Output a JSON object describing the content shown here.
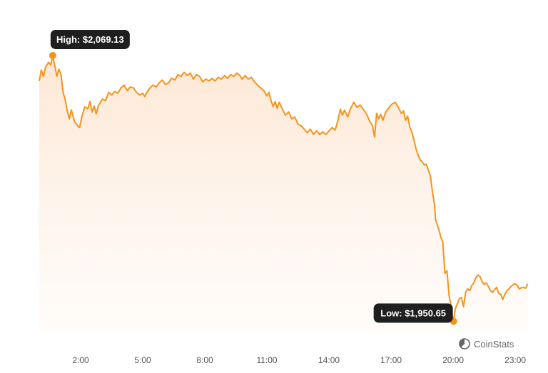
{
  "chart_data": {
    "type": "area",
    "x_unit": "hour",
    "xlim": [
      0,
      24.1
    ],
    "ylim": [
      1946,
      2078
    ],
    "x_ticks": [
      {
        "x": 2,
        "label": "2:00"
      },
      {
        "x": 5,
        "label": "5:00"
      },
      {
        "x": 8,
        "label": "8:00"
      },
      {
        "x": 11,
        "label": "11:00"
      },
      {
        "x": 14,
        "label": "14:00"
      },
      {
        "x": 17,
        "label": "17:00"
      },
      {
        "x": 20,
        "label": "20:00"
      },
      {
        "x": 23,
        "label": "23:00"
      }
    ],
    "colors": {
      "line": "#f7931a",
      "fill_top": "#fde6d2",
      "fill_bottom": "#fffaf6",
      "callout": "#1f1f1f"
    },
    "high": {
      "x": 0.65,
      "y": 2069.13,
      "label": "High: $2,069.13"
    },
    "low": {
      "x": 20.02,
      "y": 1950.65,
      "label": "Low: $1,950.65"
    },
    "points": [
      [
        0,
        2057.8
      ],
      [
        0.1,
        2062.7
      ],
      [
        0.2,
        2059.8
      ],
      [
        0.3,
        2063.8
      ],
      [
        0.45,
        2066.1
      ],
      [
        0.55,
        2064.9
      ],
      [
        0.65,
        2069.13
      ],
      [
        0.75,
        2064.5
      ],
      [
        0.85,
        2059.9
      ],
      [
        0.95,
        2063.0
      ],
      [
        1.05,
        2060.7
      ],
      [
        1.15,
        2052.7
      ],
      [
        1.25,
        2049.5
      ],
      [
        1.35,
        2044.6
      ],
      [
        1.45,
        2040.9
      ],
      [
        1.55,
        2044.9
      ],
      [
        1.7,
        2039.8
      ],
      [
        1.85,
        2037.8
      ],
      [
        1.95,
        2037.0
      ],
      [
        2.05,
        2041.6
      ],
      [
        2.2,
        2046.2
      ],
      [
        2.35,
        2045.4
      ],
      [
        2.45,
        2048.6
      ],
      [
        2.55,
        2043.9
      ],
      [
        2.65,
        2046.6
      ],
      [
        2.75,
        2043.1
      ],
      [
        2.85,
        2046.6
      ],
      [
        2.95,
        2048.2
      ],
      [
        3.05,
        2049.7
      ],
      [
        3.2,
        2049.0
      ],
      [
        3.35,
        2052.7
      ],
      [
        3.5,
        2051.5
      ],
      [
        3.65,
        2053.1
      ],
      [
        3.8,
        2052.3
      ],
      [
        3.95,
        2054.7
      ],
      [
        4.1,
        2055.9
      ],
      [
        4.25,
        2053.5
      ],
      [
        4.4,
        2055.1
      ],
      [
        4.55,
        2054.7
      ],
      [
        4.7,
        2052.7
      ],
      [
        4.85,
        2051.5
      ],
      [
        5.0,
        2052.3
      ],
      [
        5.1,
        2050.8
      ],
      [
        5.2,
        2052.7
      ],
      [
        5.35,
        2054.7
      ],
      [
        5.5,
        2055.9
      ],
      [
        5.65,
        2055.1
      ],
      [
        5.8,
        2057.0
      ],
      [
        5.95,
        2058.2
      ],
      [
        6.1,
        2056.2
      ],
      [
        6.25,
        2057.0
      ],
      [
        6.4,
        2059.0
      ],
      [
        6.55,
        2058.2
      ],
      [
        6.7,
        2060.6
      ],
      [
        6.85,
        2059.8
      ],
      [
        7.0,
        2061.7
      ],
      [
        7.15,
        2060.2
      ],
      [
        7.3,
        2061.3
      ],
      [
        7.45,
        2058.6
      ],
      [
        7.6,
        2060.6
      ],
      [
        7.75,
        2059.8
      ],
      [
        7.9,
        2057.4
      ],
      [
        8.05,
        2058.6
      ],
      [
        8.2,
        2057.8
      ],
      [
        8.35,
        2058.9
      ],
      [
        8.5,
        2057.8
      ],
      [
        8.65,
        2059.4
      ],
      [
        8.8,
        2058.6
      ],
      [
        8.95,
        2060.2
      ],
      [
        9.1,
        2058.9
      ],
      [
        9.25,
        2060.6
      ],
      [
        9.4,
        2059.8
      ],
      [
        9.55,
        2061.3
      ],
      [
        9.7,
        2060.2
      ],
      [
        9.8,
        2058.6
      ],
      [
        9.95,
        2060.2
      ],
      [
        10.1,
        2058.6
      ],
      [
        10.25,
        2059.4
      ],
      [
        10.4,
        2057.4
      ],
      [
        10.55,
        2055.9
      ],
      [
        10.7,
        2054.7
      ],
      [
        10.85,
        2053.5
      ],
      [
        11.0,
        2051.1
      ],
      [
        11.1,
        2052.7
      ],
      [
        11.2,
        2049.1
      ],
      [
        11.3,
        2046.4
      ],
      [
        11.4,
        2048.6
      ],
      [
        11.5,
        2045.6
      ],
      [
        11.6,
        2048.3
      ],
      [
        11.75,
        2045.2
      ],
      [
        11.9,
        2042.5
      ],
      [
        12.05,
        2044.0
      ],
      [
        12.2,
        2040.9
      ],
      [
        12.35,
        2041.7
      ],
      [
        12.5,
        2038.5
      ],
      [
        12.65,
        2037.8
      ],
      [
        12.8,
        2036.3
      ],
      [
        12.95,
        2034.7
      ],
      [
        13.1,
        2036.3
      ],
      [
        13.25,
        2034.0
      ],
      [
        13.4,
        2035.5
      ],
      [
        13.55,
        2033.9
      ],
      [
        13.7,
        2035.1
      ],
      [
        13.85,
        2033.9
      ],
      [
        14.0,
        2035.5
      ],
      [
        14.15,
        2037.0
      ],
      [
        14.3,
        2035.9
      ],
      [
        14.45,
        2040.9
      ],
      [
        14.55,
        2045.2
      ],
      [
        14.65,
        2042.5
      ],
      [
        14.75,
        2044.8
      ],
      [
        14.9,
        2041.7
      ],
      [
        15.05,
        2045.6
      ],
      [
        15.2,
        2048.3
      ],
      [
        15.35,
        2046.0
      ],
      [
        15.5,
        2047.1
      ],
      [
        15.65,
        2045.2
      ],
      [
        15.8,
        2043.3
      ],
      [
        15.95,
        2040.2
      ],
      [
        16.1,
        2037.8
      ],
      [
        16.2,
        2032.8
      ],
      [
        16.3,
        2043.3
      ],
      [
        16.4,
        2040.9
      ],
      [
        16.5,
        2042.9
      ],
      [
        16.6,
        2040.2
      ],
      [
        16.75,
        2044.0
      ],
      [
        16.9,
        2046.0
      ],
      [
        17.05,
        2047.5
      ],
      [
        17.2,
        2048.3
      ],
      [
        17.35,
        2046.0
      ],
      [
        17.5,
        2043.3
      ],
      [
        17.6,
        2044.4
      ],
      [
        17.7,
        2040.2
      ],
      [
        17.8,
        2042.1
      ],
      [
        17.9,
        2037.4
      ],
      [
        18.0,
        2035.1
      ],
      [
        18.1,
        2031.6
      ],
      [
        18.2,
        2027.7
      ],
      [
        18.3,
        2024.9
      ],
      [
        18.4,
        2022.6
      ],
      [
        18.5,
        2021.8
      ],
      [
        18.6,
        2020.3
      ],
      [
        18.7,
        2020.7
      ],
      [
        18.8,
        2018.0
      ],
      [
        18.9,
        2015.3
      ],
      [
        19.0,
        2008.4
      ],
      [
        19.1,
        2002.6
      ],
      [
        19.15,
        1996.0
      ],
      [
        19.2,
        1994.5
      ],
      [
        19.3,
        1991.8
      ],
      [
        19.4,
        1988.3
      ],
      [
        19.5,
        1985.9
      ],
      [
        19.6,
        1972.0
      ],
      [
        19.7,
        1973.2
      ],
      [
        19.8,
        1962.3
      ],
      [
        19.9,
        1957.2
      ],
      [
        19.95,
        1953.7
      ],
      [
        20.02,
        1950.65
      ],
      [
        20.1,
        1956.1
      ],
      [
        20.2,
        1958.4
      ],
      [
        20.3,
        1960.8
      ],
      [
        20.4,
        1961.2
      ],
      [
        20.5,
        1957.2
      ],
      [
        20.6,
        1963.5
      ],
      [
        20.7,
        1965.1
      ],
      [
        20.8,
        1964.3
      ],
      [
        20.9,
        1966.6
      ],
      [
        21.0,
        1967.8
      ],
      [
        21.1,
        1970.1
      ],
      [
        21.2,
        1971.3
      ],
      [
        21.3,
        1970.5
      ],
      [
        21.4,
        1968.2
      ],
      [
        21.5,
        1967.0
      ],
      [
        21.6,
        1967.8
      ],
      [
        21.7,
        1966.2
      ],
      [
        21.8,
        1964.3
      ],
      [
        21.9,
        1963.5
      ],
      [
        22.0,
        1964.7
      ],
      [
        22.1,
        1965.8
      ],
      [
        22.2,
        1963.1
      ],
      [
        22.3,
        1962.7
      ],
      [
        22.4,
        1960.4
      ],
      [
        22.5,
        1962.7
      ],
      [
        22.6,
        1964.3
      ],
      [
        22.7,
        1965.1
      ],
      [
        22.8,
        1966.2
      ],
      [
        22.9,
        1967.0
      ],
      [
        23.0,
        1967.4
      ],
      [
        23.1,
        1966.6
      ],
      [
        23.2,
        1965.1
      ],
      [
        23.35,
        1965.8
      ],
      [
        23.5,
        1965.4
      ],
      [
        23.6,
        1967.4
      ]
    ]
  },
  "brand": {
    "name": "CoinStats",
    "icon": "coinstats-logo-icon"
  }
}
